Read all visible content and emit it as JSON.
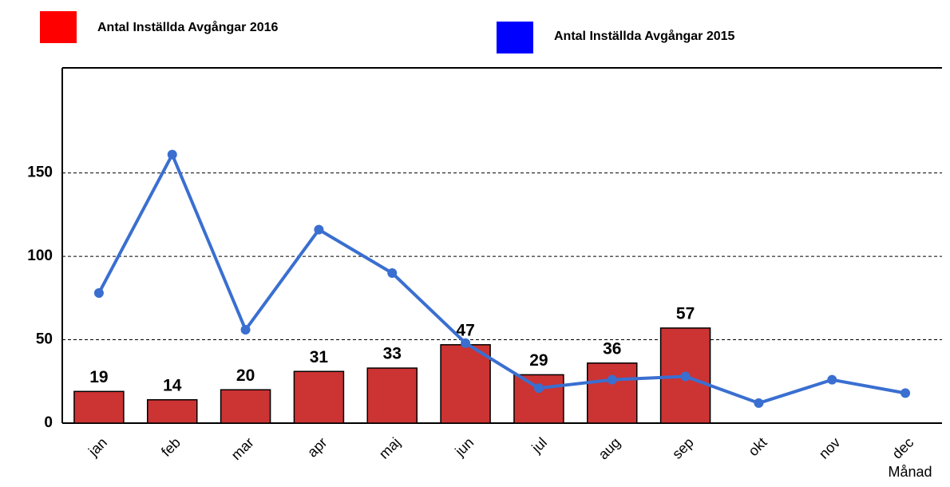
{
  "chart_data": {
    "type": "bar",
    "categories": [
      "jan",
      "feb",
      "mar",
      "apr",
      "maj",
      "jun",
      "jul",
      "aug",
      "sep",
      "okt",
      "nov",
      "dec"
    ],
    "x_label": "Månad",
    "series": [
      {
        "name": "Antal Inställda Avgångar 2016",
        "type": "bar",
        "color": "#cc3333",
        "legend_color": "#ff0000",
        "values": [
          19,
          14,
          20,
          31,
          33,
          47,
          29,
          36,
          57,
          null,
          null,
          null
        ]
      },
      {
        "name": "Antal Inställda Avgångar 2015",
        "type": "line",
        "color": "#3a6fd0",
        "legend_color": "#0000ff",
        "values": [
          78,
          161,
          56,
          116,
          90,
          48,
          21,
          26,
          28,
          12,
          26,
          18
        ]
      }
    ],
    "ylim": [
      0,
      213
    ],
    "yticks": [
      0,
      50,
      100,
      150
    ],
    "grid": true
  }
}
